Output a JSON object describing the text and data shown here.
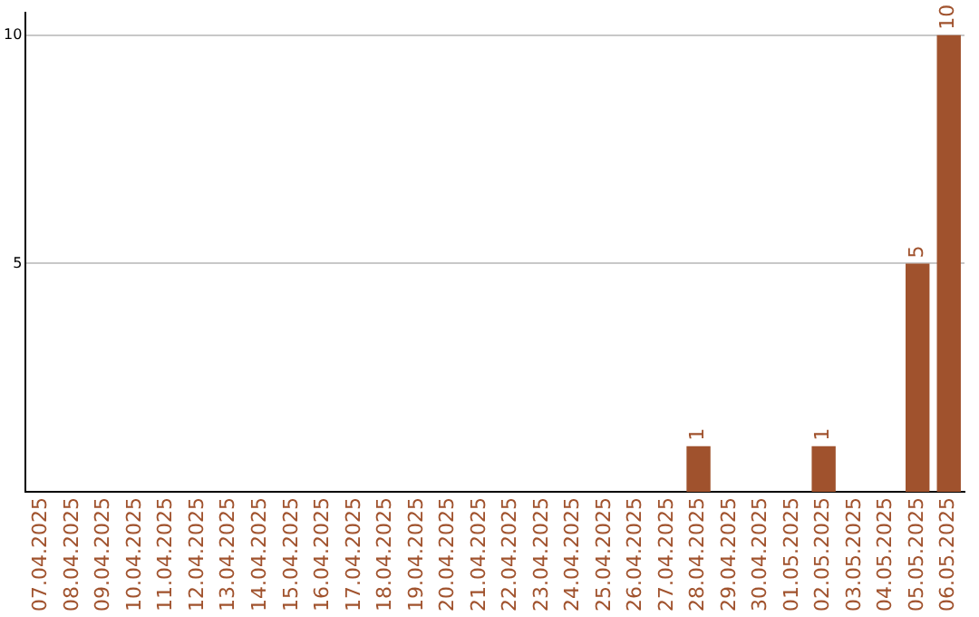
{
  "chart_data": {
    "type": "bar",
    "categories": [
      "07.04.2025",
      "08.04.2025",
      "09.04.2025",
      "10.04.2025",
      "11.04.2025",
      "12.04.2025",
      "13.04.2025",
      "14.04.2025",
      "15.04.2025",
      "16.04.2025",
      "17.04.2025",
      "18.04.2025",
      "19.04.2025",
      "20.04.2025",
      "21.04.2025",
      "22.04.2025",
      "23.04.2025",
      "24.04.2025",
      "25.04.2025",
      "26.04.2025",
      "27.04.2025",
      "28.04.2025",
      "29.04.2025",
      "30.04.2025",
      "01.05.2025",
      "02.05.2025",
      "03.05.2025",
      "04.05.2025",
      "05.05.2025",
      "06.05.2025"
    ],
    "values": [
      0,
      0,
      0,
      0,
      0,
      0,
      0,
      0,
      0,
      0,
      0,
      0,
      0,
      0,
      0,
      0,
      0,
      0,
      0,
      0,
      0,
      1,
      0,
      0,
      0,
      1,
      0,
      0,
      5,
      10
    ],
    "value_labels": [
      null,
      null,
      null,
      null,
      null,
      null,
      null,
      null,
      null,
      null,
      null,
      null,
      null,
      null,
      null,
      null,
      null,
      null,
      null,
      null,
      null,
      "1",
      null,
      null,
      null,
      "1",
      null,
      null,
      "5",
      "10"
    ],
    "color": "#a0522d",
    "ylim": [
      0,
      10.5
    ],
    "yticks": [
      5,
      10
    ],
    "grid": "y"
  }
}
